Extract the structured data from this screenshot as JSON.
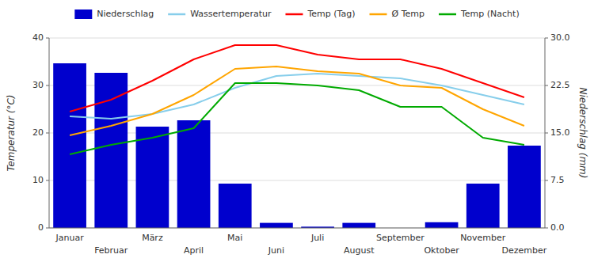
{
  "chart_data": {
    "type": "line",
    "categories": [
      "Januar",
      "Februar",
      "März",
      "April",
      "Mai",
      "Juni",
      "Juli",
      "August",
      "September",
      "Oktober",
      "November",
      "Dezember"
    ],
    "series": [
      {
        "name": "Niederschlag",
        "type": "bar",
        "axis": "y2",
        "color": "#0000cd",
        "values": [
          26.0,
          24.5,
          16.0,
          17.0,
          7.0,
          0.8,
          0.2,
          0.8,
          0.0,
          0.9,
          7.0,
          13.0
        ]
      },
      {
        "name": "Wassertemperatur",
        "type": "line",
        "color": "#87ceeb",
        "values": [
          23.5,
          23.0,
          24.0,
          26.0,
          29.5,
          32.0,
          32.5,
          32.0,
          31.5,
          30.0,
          28.0,
          26.0
        ]
      },
      {
        "name": "Temp (Tag)",
        "type": "line",
        "color": "#ff0000",
        "values": [
          24.5,
          27.0,
          31.0,
          35.5,
          38.5,
          38.5,
          36.5,
          35.5,
          35.5,
          33.5,
          30.5,
          27.5
        ]
      },
      {
        "name": "Ø Temp",
        "type": "line",
        "color": "#ffa500",
        "values": [
          19.5,
          21.5,
          24.0,
          28.0,
          33.5,
          34.0,
          33.0,
          32.5,
          30.0,
          29.5,
          25.0,
          21.5
        ]
      },
      {
        "name": "Temp (Nacht)",
        "type": "line",
        "color": "#00aa00",
        "values": [
          15.5,
          17.5,
          19.0,
          21.0,
          30.5,
          30.5,
          30.0,
          29.0,
          25.5,
          25.5,
          19.0,
          17.5
        ]
      }
    ],
    "ylabel": "Temperatur (°C)",
    "y2label": "Niederschlag (mm)",
    "ylim": [
      0,
      40
    ],
    "yticks": [
      0,
      10,
      20,
      30,
      40
    ],
    "y2lim": [
      0,
      30
    ],
    "y2ticks": [
      {
        "value": 0.0,
        "label": "0.0"
      },
      7.5,
      {
        "value": 15.0,
        "label": "15.0"
      },
      22.5,
      {
        "value": 30.0,
        "label": "30.0"
      }
    ],
    "grid": true,
    "legend": "top"
  }
}
